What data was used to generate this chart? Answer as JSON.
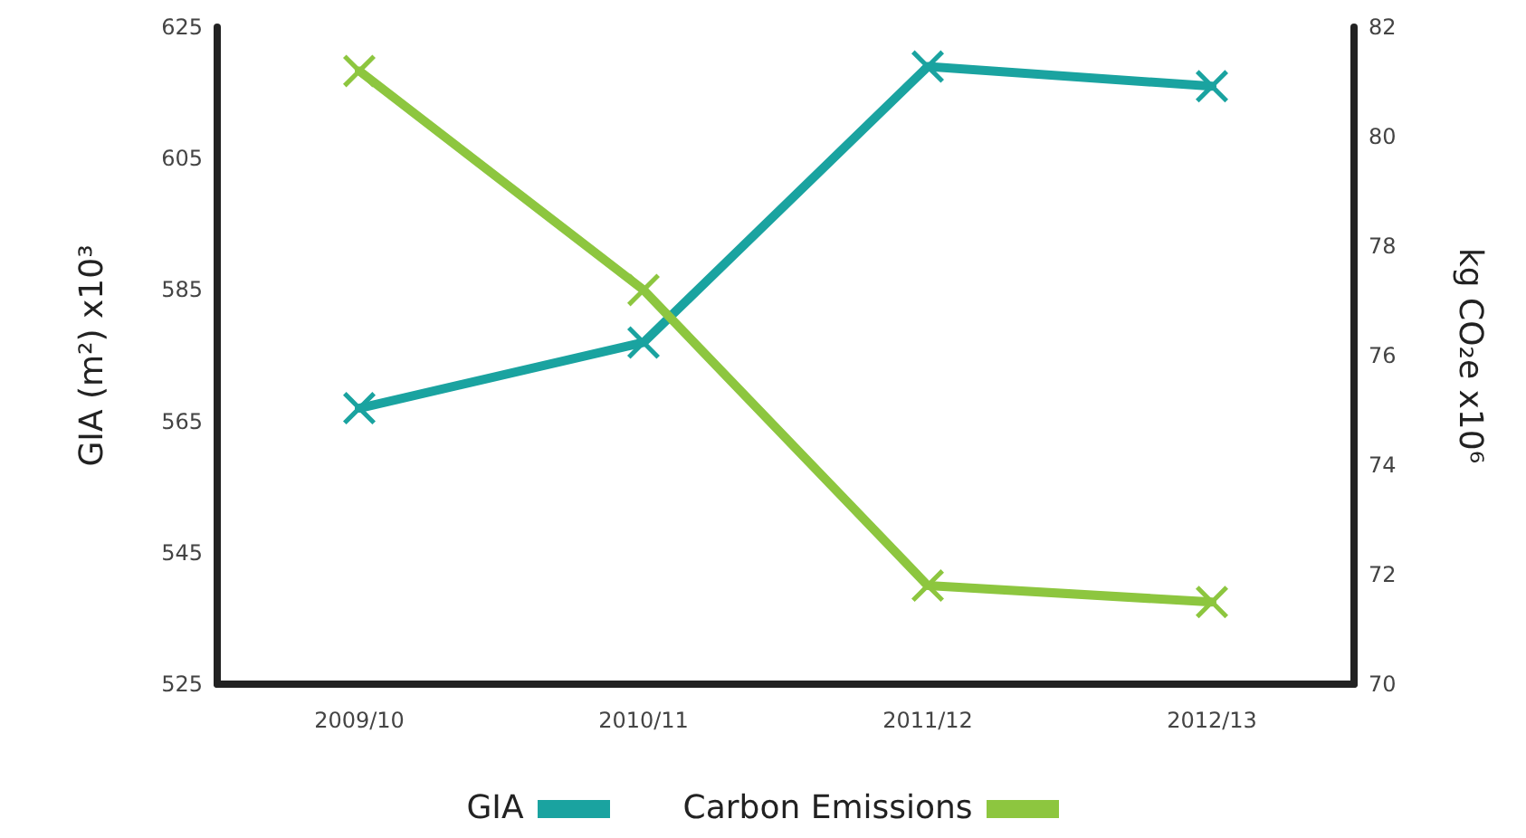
{
  "chart_data": {
    "type": "line",
    "categories": [
      "2009/10",
      "2010/11",
      "2011/12",
      "2012/13"
    ],
    "ylabel": "GIA (m²) x10³",
    "y2label": "kg CO₂e x10⁶",
    "series": [
      {
        "name": "GIA",
        "color": "#1aa3a0",
        "values": [
          567,
          577,
          619,
          616
        ]
      },
      {
        "name": "Carbon Emissions",
        "color": "#8dc63f",
        "values": [
          81.2,
          77.2,
          71.8,
          71.5
        ],
        "axis": "y2"
      }
    ],
    "ylim": [
      525,
      625
    ],
    "yticks": [
      525,
      545,
      565,
      585,
      605,
      625
    ],
    "y2lim": [
      70,
      82
    ],
    "y2ticks": [
      70,
      72,
      74,
      76,
      78,
      80,
      82
    ],
    "marker": "cross",
    "line_style": "solid",
    "grid": false,
    "legend": "bottom"
  }
}
